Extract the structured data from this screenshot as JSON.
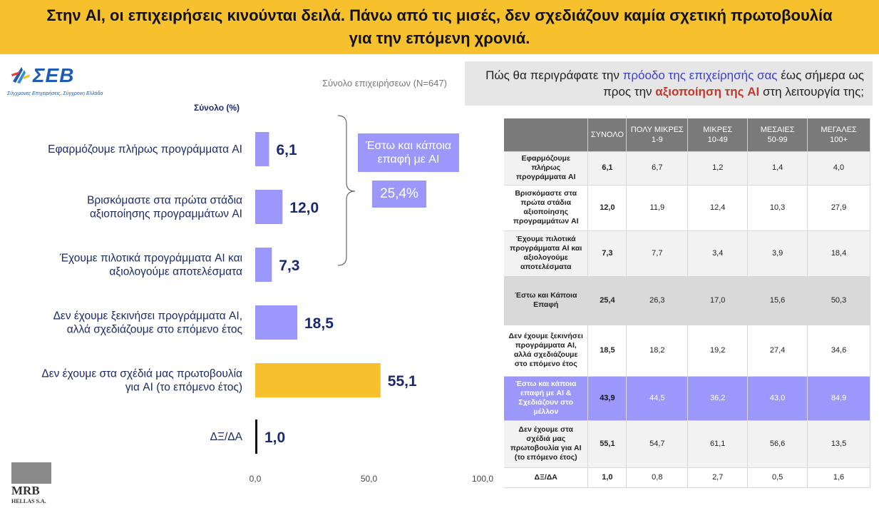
{
  "banner": {
    "title": "Στην AI, οι επιχειρήσεις κινούνται δειλά. Πάνω από τις μισές, δεν σχεδιάζουν καμία σχετική πρωτοβουλία για την επόμενη χρονιά."
  },
  "logo": {
    "word": "ΣΕΒ",
    "tagline": "Σύγχρονες Επιχειρήσεις, Σύγχρονη Ελλάδα"
  },
  "chart_header": {
    "total_label": "Σύνολο  (%)",
    "base_label": "Σύνολο επιχειρήσεων (N=647)"
  },
  "callouts": {
    "contact_label": "Έστω και κάποια επαφή με AI",
    "contact_value": "25,4%"
  },
  "question": {
    "part1": "Πώς θα περιγράφατε την ",
    "highlight1": "πρόοδο της επιχείρησής σας",
    "part2": " έως σήμερα ως προς την ",
    "highlight2": "αξιοποίηση της AI",
    "part3": " στη λειτουργία της;"
  },
  "chart_data": {
    "type": "bar",
    "orientation": "horizontal",
    "categories": [
      "Εφαρμόζουμε πλήρως  προγράμματα AI",
      "Βρισκόμαστε στα πρώτα στάδια αξιοποίησης προγραμμάτων AI",
      "Έχουμε πιλοτικά προγράμματα AI και αξιολογούμε  αποτελέσματα",
      "Δεν έχουμε ξεκινήσει προγράμματα AI, αλλά σχεδιάζουμε στο επόμενο έτος",
      "Δεν έχουμε στα σχέδιά μας  πρωτοβουλία για AI (το επόμενο έτος)",
      "ΔΞ/ΔΑ"
    ],
    "values": [
      6.1,
      12.0,
      7.3,
      18.5,
      55.1,
      1.0
    ],
    "value_labels": [
      "6,1",
      "12,0",
      "7,3",
      "18,5",
      "55,1",
      "1,0"
    ],
    "bar_colors": [
      "#9b97fb",
      "#9b97fb",
      "#9b97fb",
      "#9b97fb",
      "#f6c12d",
      "#111111"
    ],
    "xlim": [
      0,
      100
    ],
    "tick_labels": [
      "0,0",
      "50,0",
      "100,0"
    ],
    "tick_values": [
      0,
      50,
      100
    ],
    "title": "",
    "xlabel": "",
    "ylabel": ""
  },
  "table": {
    "headers": [
      {
        "line1": "",
        "line2": ""
      },
      {
        "line1": "ΣΥΝΟΛΟ",
        "line2": ""
      },
      {
        "line1": "ΠΟΛΥ ΜΙΚΡΕΣ",
        "line2": "1-9"
      },
      {
        "line1": "ΜΙΚΡΕΣ",
        "line2": "10-49"
      },
      {
        "line1": "ΜΕΣΑΙΕΣ",
        "line2": "50-99"
      },
      {
        "line1": "ΜΕΓΑΛΕΣ",
        "line2": "100+"
      }
    ],
    "rows": [
      {
        "label": "Εφαρμόζουμε πλήρως προγράμματα AI",
        "style": "light",
        "values": [
          "6,1",
          "6,7",
          "1,2",
          "1,4",
          "4,0"
        ]
      },
      {
        "label": "Βρισκόμαστε στα πρώτα στάδια αξιοποίησης προγραμμάτων AI",
        "style": "white",
        "values": [
          "12,0",
          "11,9",
          "12,4",
          "10,3",
          "27,9"
        ]
      },
      {
        "label": "Έχουμε πιλοτικά προγράμματα AI και αξιολογούμε αποτελέσματα",
        "style": "light",
        "values": [
          "7,3",
          "7,7",
          "3,4",
          "3,9",
          "18,4"
        ]
      },
      {
        "label": "Έστω και Κάποια Επαφή",
        "style": "grey",
        "values": [
          "25,4",
          "26,3",
          "17,0",
          "15,6",
          "50,3"
        ]
      },
      {
        "label": "Δεν έχουμε ξεκινήσει προγράμματα AI, αλλά σχεδιάζουμε στο επόμενο έτος",
        "style": "white",
        "values": [
          "18,5",
          "18,2",
          "19,2",
          "27,4",
          "34,6"
        ]
      },
      {
        "label": "Έστω και κάποια επαφή με AI & Σχεδιάζουν στο μέλλον",
        "style": "purple",
        "values": [
          "43,9",
          "44,5",
          "36,2",
          "43,0",
          "84,9"
        ]
      },
      {
        "label": "Δεν έχουμε στα σχέδιά μας πρωτοβουλία για AI (το επόμενο έτος)",
        "style": "light",
        "values": [
          "55,1",
          "54,7",
          "61,1",
          "56,6",
          "13,5"
        ]
      },
      {
        "label": "ΔΞ/ΔΑ",
        "style": "white",
        "values": [
          "1,0",
          "0,8",
          "2,7",
          "0,5",
          "1,6"
        ]
      }
    ]
  },
  "footer_logo": {
    "word": "MRB",
    "sub": "HELLAS S.A."
  },
  "colors": {
    "banner": "#f6c12d",
    "accent_purple": "#9b97fb",
    "accent_yellow": "#f6c12d",
    "value_text": "#1a2a6c"
  }
}
